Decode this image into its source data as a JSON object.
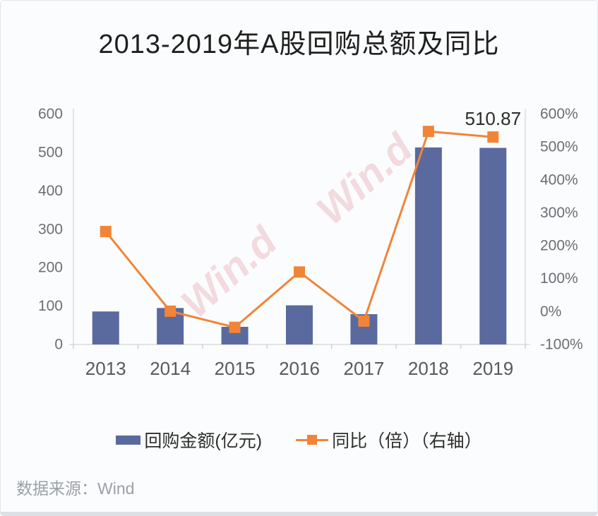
{
  "title": "2013-2019年A股回购总额及同比",
  "source_note": "数据来源：Wind",
  "watermark": {
    "text": "Win.d",
    "color": "#E9B2BB",
    "opacity": 0.45
  },
  "chart_data": {
    "type": "combo",
    "title": "2013-2019年A股回购总额及同比",
    "categories": [
      "2013",
      "2014",
      "2015",
      "2016",
      "2017",
      "2018",
      "2019"
    ],
    "series": [
      {
        "name": "回购金额(亿元)",
        "type": "bar",
        "axis": "left",
        "color": "#5A6A9E",
        "values": [
          85,
          94,
          45,
          101,
          78,
          512,
          510.87
        ]
      },
      {
        "name": "同比（倍）（右轴）",
        "type": "line",
        "axis": "right",
        "color": "#F28437",
        "marker": "square",
        "values": [
          242,
          0,
          -49,
          119,
          -30,
          546,
          529
        ]
      }
    ],
    "left_axis": {
      "min": 0,
      "max": 600,
      "step": 100,
      "tick_labels": [
        "0",
        "100",
        "200",
        "300",
        "400",
        "500",
        "600"
      ]
    },
    "right_axis": {
      "min": -100,
      "max": 600,
      "step": 100,
      "tick_labels": [
        "-100%",
        "0%",
        "100%",
        "200%",
        "300%",
        "400%",
        "500%",
        "600%"
      ]
    },
    "grid": false,
    "legend_position": "bottom",
    "annotations": [
      {
        "text": "510.87",
        "category": "2019",
        "series": "回购金额(亿元)"
      }
    ]
  }
}
